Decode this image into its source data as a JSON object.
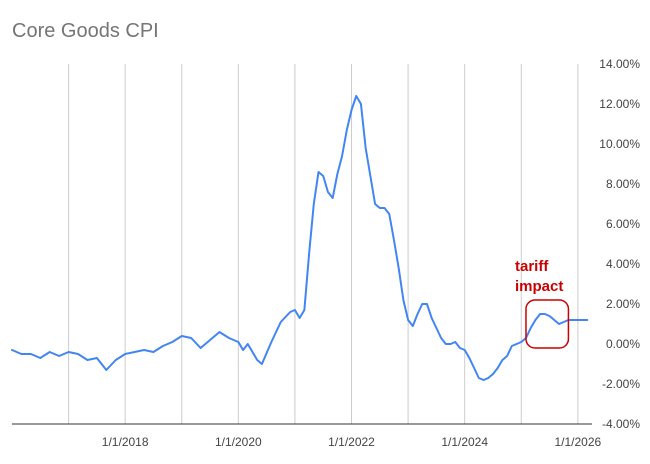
{
  "chart_data": {
    "type": "line",
    "title": "Core Goods CPI",
    "xlabel": "",
    "ylabel": "",
    "x_tick_labels": [
      "1/1/2018",
      "1/1/2020",
      "1/1/2022",
      "1/1/2024",
      "1/1/2026"
    ],
    "x_tick_dates": [
      "2018-01-01",
      "2020-01-01",
      "2022-01-01",
      "2024-01-01",
      "2026-01-01"
    ],
    "y_tick_labels": [
      "-4.00%",
      "-2.00%",
      "0.00%",
      "2.00%",
      "4.00%",
      "6.00%",
      "8.00%",
      "10.00%",
      "12.00%",
      "14.00%"
    ],
    "ylim": [
      -4,
      14
    ],
    "y_unit": "%",
    "xlim": [
      "2016-01-01",
      "2026-04-01"
    ],
    "grid": {
      "vertical": true,
      "horizontal": false
    },
    "legend": "none",
    "series": [
      {
        "color": "#4285f4",
        "x": [
          "2016-01",
          "2016-03",
          "2016-05",
          "2016-07",
          "2016-09",
          "2016-11",
          "2017-01",
          "2017-03",
          "2017-05",
          "2017-07",
          "2017-09",
          "2017-11",
          "2018-01",
          "2018-03",
          "2018-05",
          "2018-07",
          "2018-09",
          "2018-11",
          "2019-01",
          "2019-03",
          "2019-05",
          "2019-07",
          "2019-09",
          "2019-11",
          "2020-01",
          "2020-02",
          "2020-03",
          "2020-05",
          "2020-06",
          "2020-08",
          "2020-10",
          "2020-12",
          "2021-01",
          "2021-02",
          "2021-03",
          "2021-04",
          "2021-05",
          "2021-06",
          "2021-07",
          "2021-08",
          "2021-09",
          "2021-10",
          "2021-11",
          "2021-12",
          "2022-01",
          "2022-02",
          "2022-03",
          "2022-04",
          "2022-05",
          "2022-06",
          "2022-07",
          "2022-08",
          "2022-09",
          "2022-10",
          "2022-11",
          "2022-12",
          "2023-01",
          "2023-02",
          "2023-03",
          "2023-04",
          "2023-05",
          "2023-06",
          "2023-07",
          "2023-08",
          "2023-09",
          "2023-10",
          "2023-11",
          "2023-12",
          "2024-01",
          "2024-02",
          "2024-03",
          "2024-04",
          "2024-05",
          "2024-06",
          "2024-07",
          "2024-08",
          "2024-09",
          "2024-10",
          "2024-11",
          "2024-12",
          "2025-01",
          "2025-02",
          "2025-03",
          "2025-04",
          "2025-05",
          "2025-06",
          "2025-07",
          "2025-08",
          "2025-09",
          "2025-10",
          "2025-11",
          "2025-12",
          "2026-01",
          "2026-02",
          "2026-03"
        ],
        "y": [
          -0.3,
          -0.5,
          -0.5,
          -0.7,
          -0.4,
          -0.6,
          -0.4,
          -0.5,
          -0.8,
          -0.7,
          -1.3,
          -0.8,
          -0.5,
          -0.4,
          -0.3,
          -0.4,
          -0.1,
          0.1,
          0.4,
          0.3,
          -0.2,
          0.2,
          0.6,
          0.3,
          0.1,
          -0.3,
          0.0,
          -0.8,
          -1.0,
          0.1,
          1.1,
          1.6,
          1.7,
          1.3,
          1.7,
          4.5,
          7.0,
          8.6,
          8.4,
          7.6,
          7.3,
          8.5,
          9.4,
          10.7,
          11.7,
          12.4,
          12.0,
          9.8,
          8.4,
          7.0,
          6.8,
          6.8,
          6.5,
          5.2,
          3.8,
          2.2,
          1.2,
          0.9,
          1.5,
          2.0,
          2.0,
          1.3,
          0.8,
          0.3,
          0.0,
          0.0,
          0.1,
          -0.2,
          -0.3,
          -0.7,
          -1.2,
          -1.7,
          -1.8,
          -1.7,
          -1.5,
          -1.2,
          -0.8,
          -0.6,
          -0.1,
          0.0,
          0.1,
          0.3,
          0.8,
          1.2,
          1.5,
          1.5,
          1.4,
          1.2,
          1.0,
          1.1,
          1.2,
          1.2,
          1.2,
          1.2,
          1.2
        ]
      }
    ],
    "annotations": [
      {
        "text_lines": [
          "tariff",
          "impact"
        ],
        "color": "#cc0000",
        "target_x_range": [
          "2025-02",
          "2025-11"
        ],
        "target_y_range": [
          -0.2,
          2.2
        ]
      }
    ]
  }
}
